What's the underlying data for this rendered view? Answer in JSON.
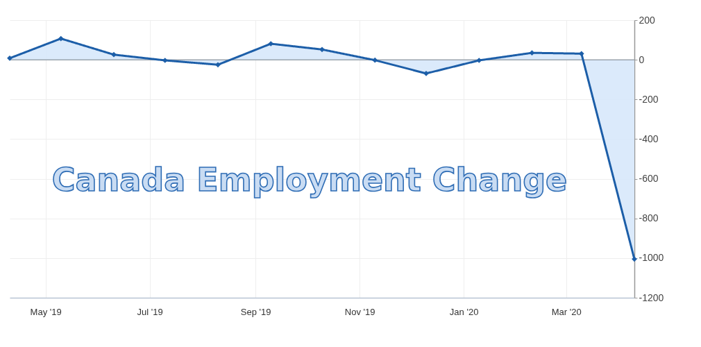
{
  "chart_data": {
    "type": "area",
    "title": "Canada Employment Change",
    "x": [
      "2019-04-10",
      "2019-05-10",
      "2019-06-10",
      "2019-07-10",
      "2019-08-10",
      "2019-09-10",
      "2019-10-10",
      "2019-11-10",
      "2019-12-10",
      "2020-01-10",
      "2020-02-10",
      "2020-03-10",
      "2020-04-10"
    ],
    "series": [
      {
        "color": "#1c5ea8",
        "values": [
          8,
          107,
          26,
          -3,
          -25,
          81,
          52,
          -2,
          -69,
          -3,
          35,
          31,
          -1005
        ]
      }
    ],
    "xlim": [
      "2019-04-10",
      "2020-04-10"
    ],
    "xticks": [
      {
        "value": "2019-05-01",
        "label": "May '19"
      },
      {
        "value": "2019-07-01",
        "label": "Jul '19"
      },
      {
        "value": "2019-09-01",
        "label": "Sep '19"
      },
      {
        "value": "2019-11-01",
        "label": "Nov '19"
      },
      {
        "value": "2020-01-01",
        "label": "Jan '20"
      },
      {
        "value": "2020-03-01",
        "label": "Mar '20"
      }
    ],
    "ylim": [
      -1200,
      200
    ],
    "yticks": [
      -1200,
      -1000,
      -800,
      -600,
      -400,
      -200,
      0,
      200
    ],
    "grid": true,
    "marker": "diamond",
    "line_style": "solid"
  }
}
